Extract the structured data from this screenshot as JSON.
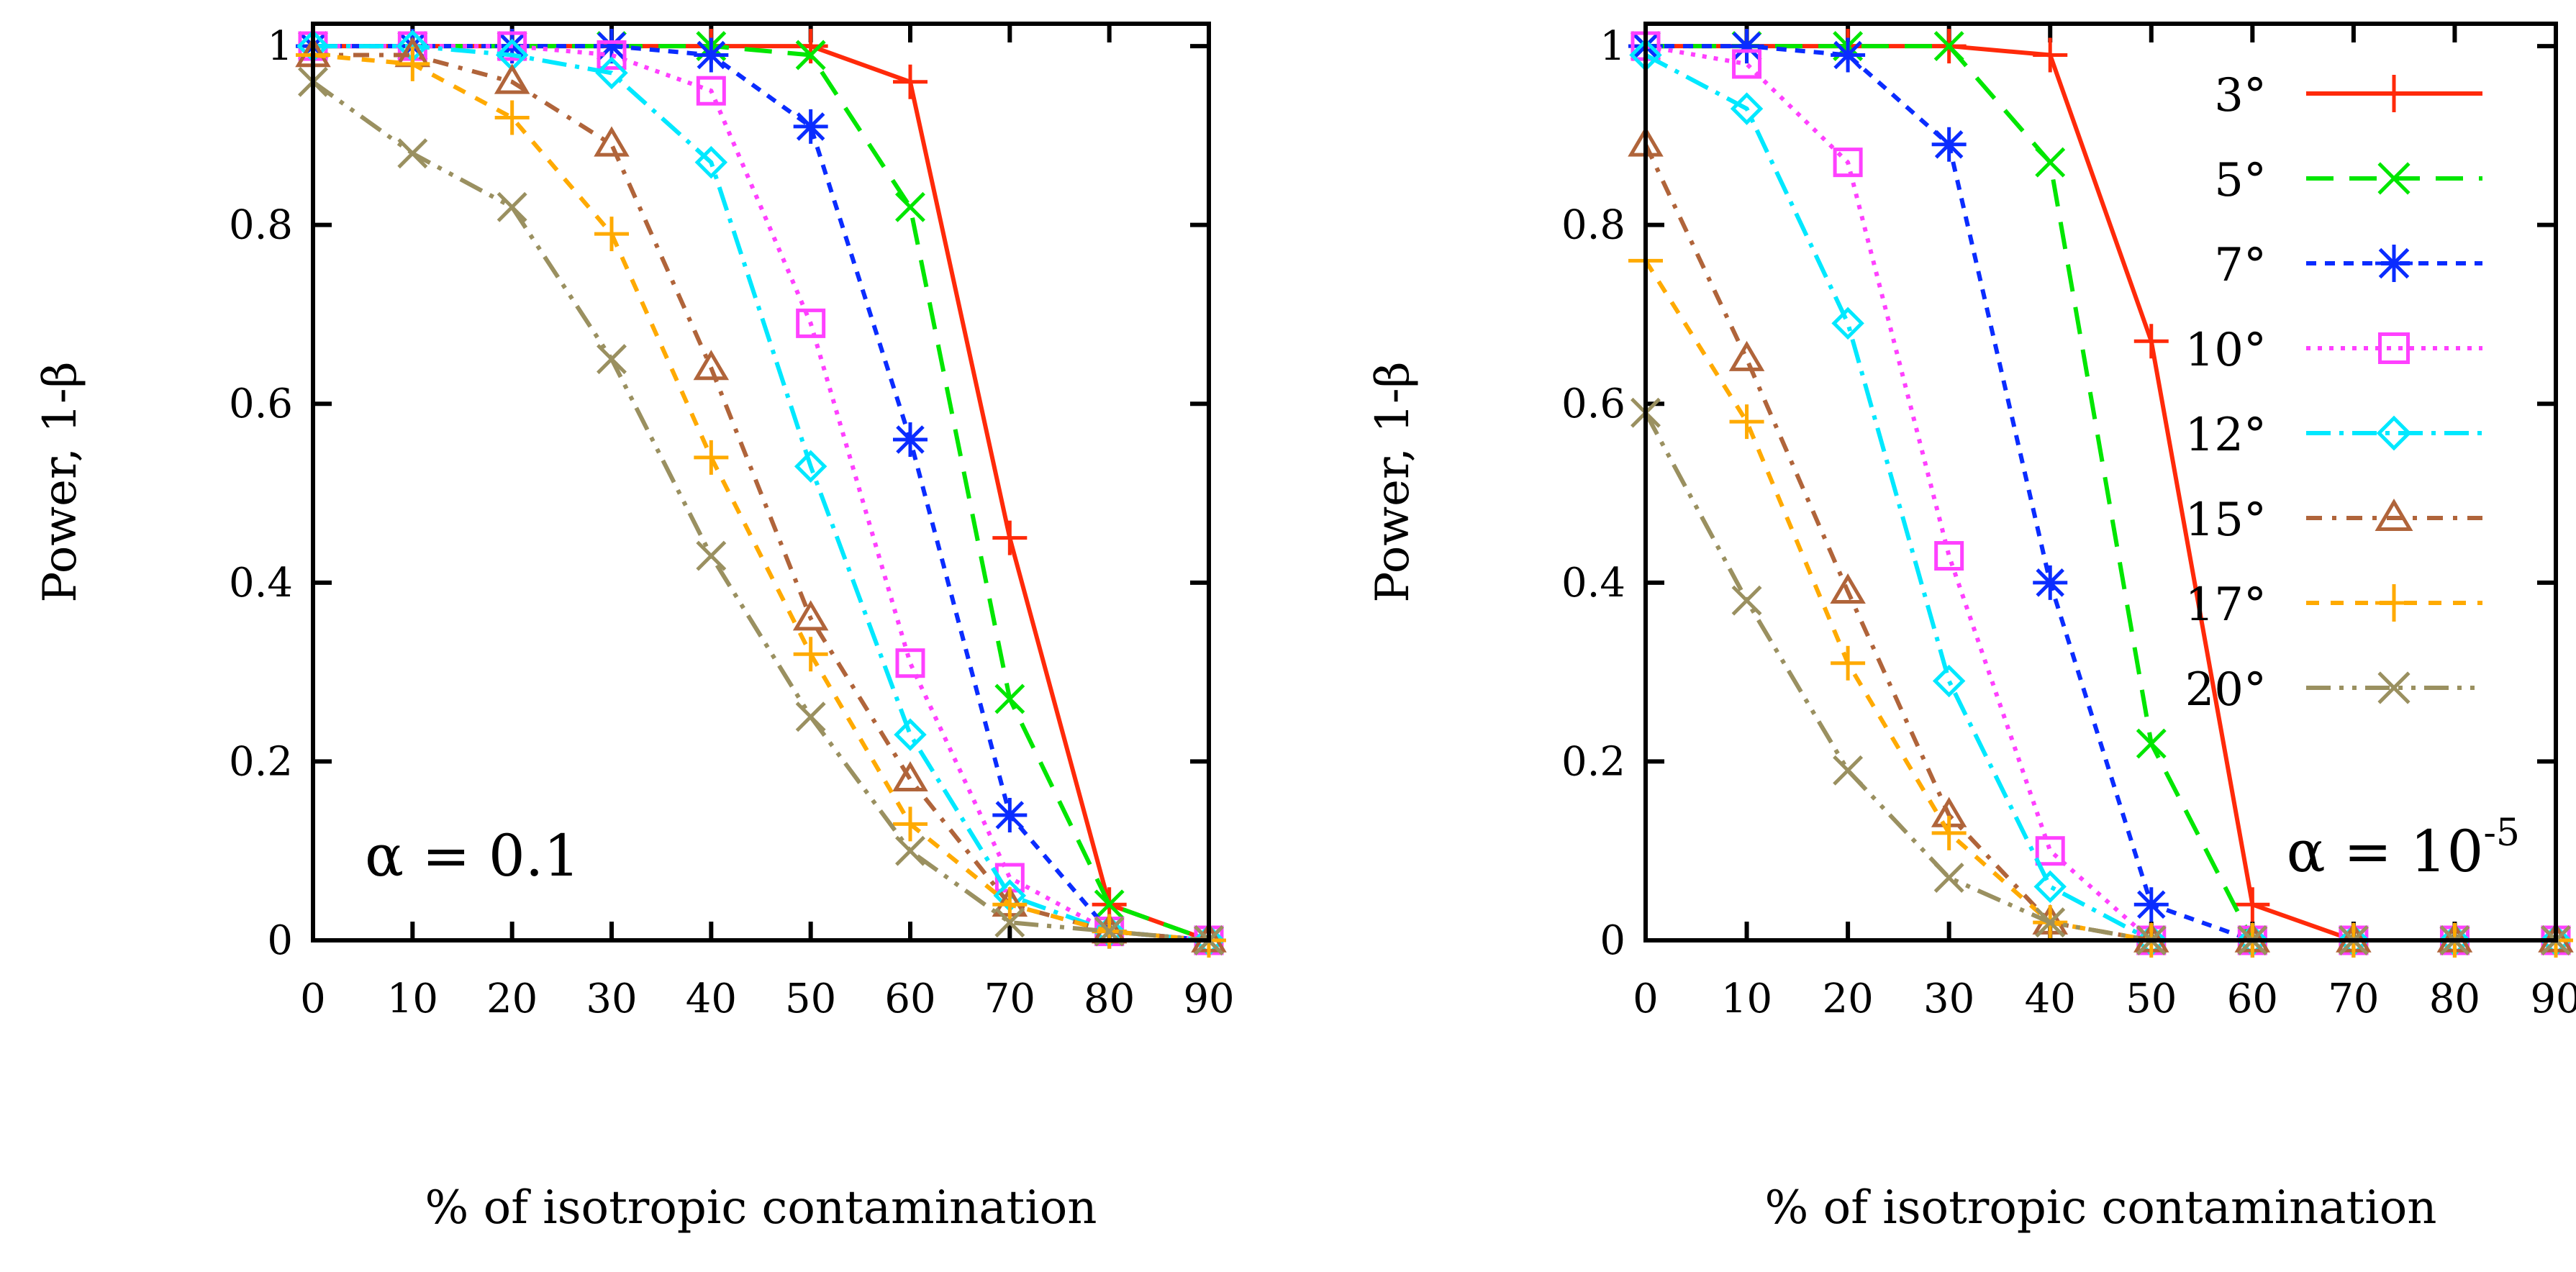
{
  "chart_data": [
    {
      "type": "line",
      "title": "",
      "annotation": "α = 0.1",
      "xlabel": "% of isotropic contamination",
      "ylabel": "Power, 1-β",
      "xlim": [
        0,
        90
      ],
      "ylim": [
        0,
        1.025
      ],
      "xticks": [
        "0",
        "10",
        "20",
        "30",
        "40",
        "50",
        "60",
        "70",
        "80",
        "90"
      ],
      "yticks": [
        "0",
        "0.2",
        "0.4",
        "0.6",
        "0.8",
        "1"
      ],
      "grid": false,
      "x": [
        0,
        10,
        20,
        30,
        40,
        50,
        60,
        70,
        80,
        90
      ],
      "series": [
        {
          "name": "3°",
          "values": [
            1,
            1,
            1,
            1,
            1,
            1,
            0.96,
            0.45,
            0.04,
            0
          ]
        },
        {
          "name": "5°",
          "values": [
            1,
            1,
            1,
            1,
            1,
            0.99,
            0.82,
            0.27,
            0.04,
            0
          ]
        },
        {
          "name": "7°",
          "values": [
            1,
            1,
            1,
            1,
            0.99,
            0.91,
            0.56,
            0.14,
            0.01,
            0
          ]
        },
        {
          "name": "10°",
          "values": [
            1,
            1,
            1,
            0.99,
            0.95,
            0.69,
            0.31,
            0.07,
            0.01,
            0
          ]
        },
        {
          "name": "12°",
          "values": [
            1,
            1,
            0.99,
            0.97,
            0.87,
            0.53,
            0.23,
            0.05,
            0.01,
            0
          ]
        },
        {
          "name": "15°",
          "values": [
            0.99,
            0.99,
            0.96,
            0.89,
            0.64,
            0.36,
            0.18,
            0.04,
            0.01,
            0
          ]
        },
        {
          "name": "17°",
          "values": [
            0.99,
            0.98,
            0.92,
            0.79,
            0.54,
            0.32,
            0.13,
            0.04,
            0.01,
            0
          ]
        },
        {
          "name": "20°",
          "values": [
            0.96,
            0.88,
            0.82,
            0.65,
            0.43,
            0.25,
            0.1,
            0.02,
            0.01,
            0
          ]
        }
      ]
    },
    {
      "type": "line",
      "title": "",
      "annotation": "α = 10",
      "annotation_exp": "-5",
      "xlabel": "% of isotropic contamination",
      "ylabel": "Power, 1-β",
      "xlim": [
        0,
        90
      ],
      "ylim": [
        0,
        1.025
      ],
      "xticks": [
        "0",
        "10",
        "20",
        "30",
        "40",
        "50",
        "60",
        "70",
        "80",
        "90"
      ],
      "yticks": [
        "0",
        "0.2",
        "0.4",
        "0.6",
        "0.8",
        "1"
      ],
      "grid": false,
      "legend": "top-right",
      "x": [
        0,
        10,
        20,
        30,
        40,
        50,
        60,
        70,
        80,
        90
      ],
      "series": [
        {
          "name": "3°",
          "values": [
            1,
            1,
            1,
            1,
            0.99,
            0.67,
            0.04,
            0,
            0,
            0
          ]
        },
        {
          "name": "5°",
          "values": [
            1,
            1,
            1,
            1,
            0.87,
            0.22,
            0,
            0,
            0,
            0
          ]
        },
        {
          "name": "7°",
          "values": [
            1,
            1,
            0.99,
            0.89,
            0.4,
            0.04,
            0,
            0,
            0,
            0
          ]
        },
        {
          "name": "10°",
          "values": [
            1,
            0.98,
            0.87,
            0.43,
            0.1,
            0,
            0,
            0,
            0,
            0
          ]
        },
        {
          "name": "12°",
          "values": [
            0.99,
            0.93,
            0.69,
            0.29,
            0.06,
            0,
            0,
            0,
            0,
            0
          ]
        },
        {
          "name": "15°",
          "values": [
            0.89,
            0.65,
            0.39,
            0.14,
            0.02,
            0,
            0,
            0,
            0,
            0
          ]
        },
        {
          "name": "17°",
          "values": [
            0.76,
            0.58,
            0.31,
            0.12,
            0.02,
            0,
            0,
            0,
            0,
            0
          ]
        },
        {
          "name": "20°",
          "values": [
            0.59,
            0.38,
            0.19,
            0.07,
            0.02,
            0,
            0,
            0,
            0,
            0
          ]
        }
      ]
    }
  ],
  "series_style": [
    {
      "color": "#ff2a0a",
      "marker": "plus",
      "dash": ""
    },
    {
      "color": "#00e600",
      "marker": "cross",
      "dash": "38,22"
    },
    {
      "color": "#0a2cff",
      "marker": "star",
      "dash": "14,12"
    },
    {
      "color": "#ff40ff",
      "marker": "square",
      "dash": "6,10"
    },
    {
      "color": "#00e8ff",
      "marker": "diamond",
      "dash": "34,12,6,12"
    },
    {
      "color": "#b0643a",
      "marker": "triangle",
      "dash": "22,14,6,14"
    },
    {
      "color": "#ffaa00",
      "marker": "plus",
      "dash": "18,16"
    },
    {
      "color": "#9a9060",
      "marker": "cross",
      "dash": "34,12,6,12,6,12"
    }
  ]
}
